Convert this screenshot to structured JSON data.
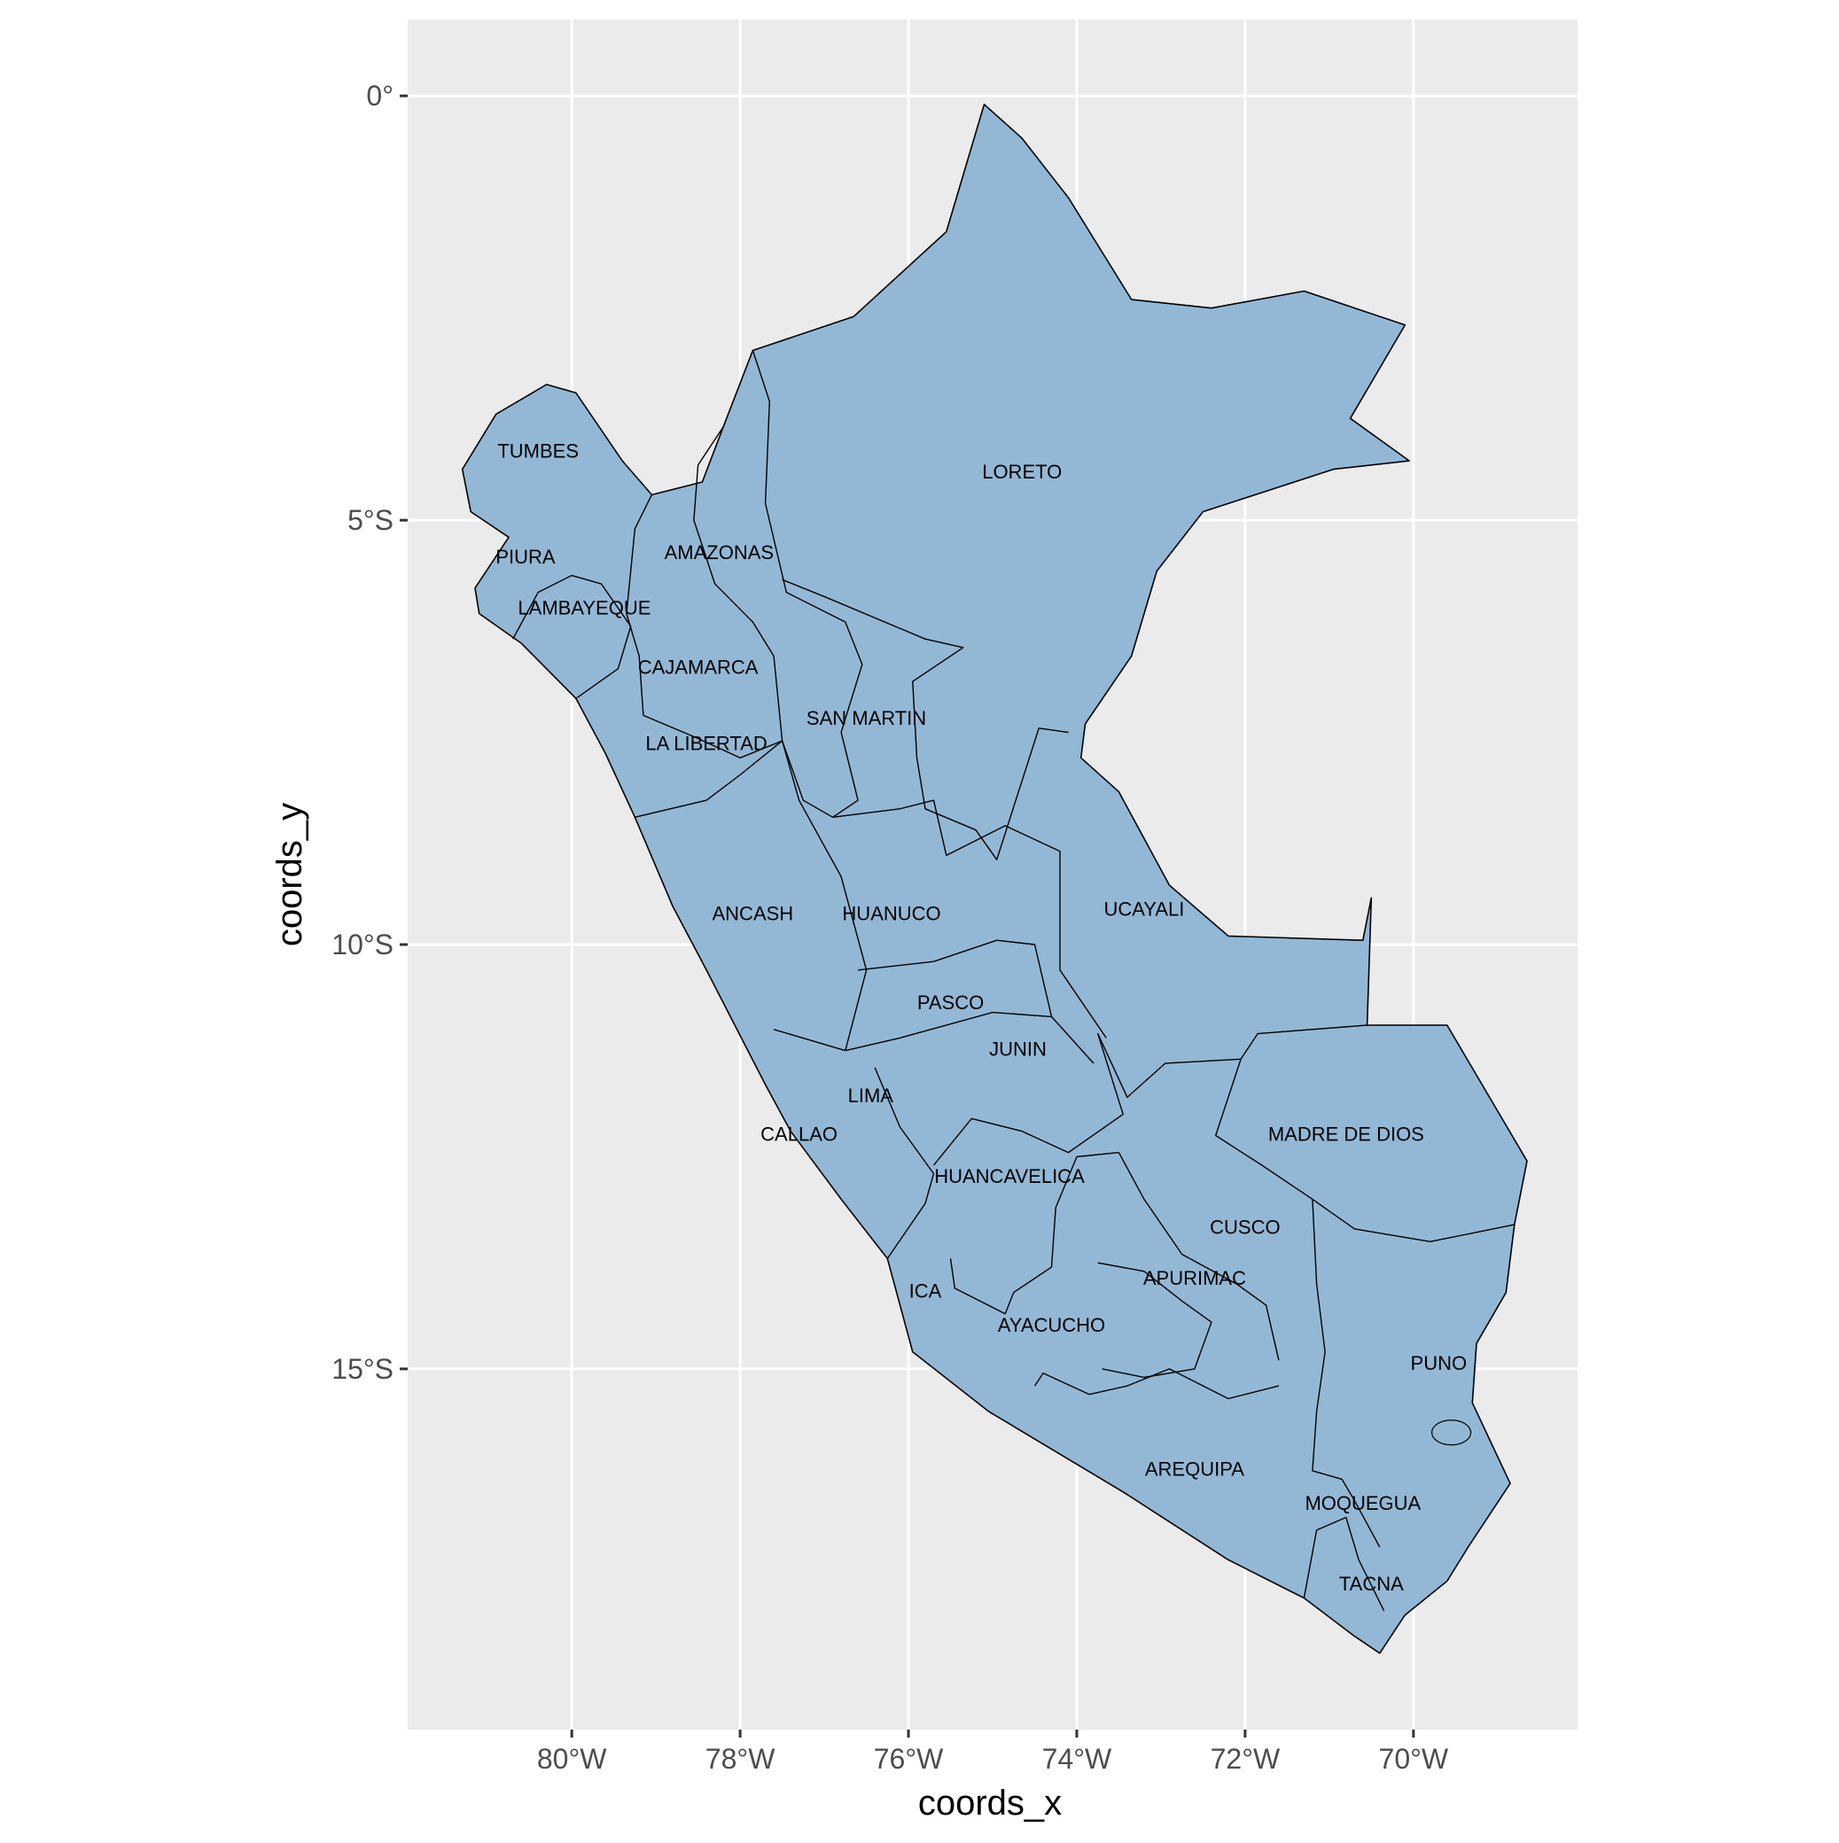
{
  "chart_data": {
    "type": "map",
    "xlabel": "coords_x",
    "ylabel": "coords_y",
    "x_ticks": [
      {
        "value": -80,
        "label": "80°W"
      },
      {
        "value": -78,
        "label": "78°W"
      },
      {
        "value": -76,
        "label": "76°W"
      },
      {
        "value": -74,
        "label": "74°W"
      },
      {
        "value": -72,
        "label": "72°W"
      },
      {
        "value": -70,
        "label": "70°W"
      }
    ],
    "y_ticks": [
      {
        "value": 0,
        "label": "0°"
      },
      {
        "value": -5,
        "label": "5°S"
      },
      {
        "value": -10,
        "label": "10°S"
      },
      {
        "value": -15,
        "label": "15°S"
      }
    ],
    "xlim": [
      -81.95,
      -68.05
    ],
    "ylim": [
      -19.25,
      0.9
    ],
    "grid": true,
    "fill_color": "#93b8d5",
    "border_color": "#000000",
    "panel_color": "#ebebeb",
    "regions": [
      {
        "name": "TUMBES",
        "lon": -80.4,
        "lat": -4.2
      },
      {
        "name": "PIURA",
        "lon": -80.55,
        "lat": -5.45
      },
      {
        "name": "LAMBAYEQUE",
        "lon": -79.85,
        "lat": -6.05
      },
      {
        "name": "AMAZONAS",
        "lon": -78.25,
        "lat": -5.4
      },
      {
        "name": "LORETO",
        "lon": -74.65,
        "lat": -4.45
      },
      {
        "name": "CAJAMARCA",
        "lon": -78.5,
        "lat": -6.75
      },
      {
        "name": "SAN MARTIN",
        "lon": -76.5,
        "lat": -7.35
      },
      {
        "name": "LA LIBERTAD",
        "lon": -78.4,
        "lat": -7.65
      },
      {
        "name": "UCAYALI",
        "lon": -73.2,
        "lat": -9.6
      },
      {
        "name": "ANCASH",
        "lon": -77.85,
        "lat": -9.65
      },
      {
        "name": "HUANUCO",
        "lon": -76.2,
        "lat": -9.65
      },
      {
        "name": "PASCO",
        "lon": -75.5,
        "lat": -10.7
      },
      {
        "name": "JUNIN",
        "lon": -74.7,
        "lat": -11.25
      },
      {
        "name": "LIMA",
        "lon": -76.45,
        "lat": -11.8
      },
      {
        "name": "CALLAO",
        "lon": -77.3,
        "lat": -12.25
      },
      {
        "name": "MADRE DE DIOS",
        "lon": -70.8,
        "lat": -12.25
      },
      {
        "name": "HUANCAVELICA",
        "lon": -74.8,
        "lat": -12.75
      },
      {
        "name": "CUSCO",
        "lon": -72.0,
        "lat": -13.35
      },
      {
        "name": "APURIMAC",
        "lon": -72.6,
        "lat": -13.95
      },
      {
        "name": "ICA",
        "lon": -75.8,
        "lat": -14.1
      },
      {
        "name": "AYACUCHO",
        "lon": -74.3,
        "lat": -14.5
      },
      {
        "name": "PUNO",
        "lon": -69.7,
        "lat": -14.95
      },
      {
        "name": "AREQUIPA",
        "lon": -72.6,
        "lat": -16.2
      },
      {
        "name": "MOQUEGUA",
        "lon": -70.6,
        "lat": -16.6
      },
      {
        "name": "TACNA",
        "lon": -70.5,
        "lat": -17.55
      }
    ],
    "outline": [
      [
        -81.3,
        -4.4
      ],
      [
        -80.9,
        -3.75
      ],
      [
        -80.3,
        -3.4
      ],
      [
        -79.95,
        -3.5
      ],
      [
        -79.4,
        -4.3
      ],
      [
        -79.05,
        -4.7
      ],
      [
        -78.45,
        -4.55
      ],
      [
        -78.2,
        -3.9
      ],
      [
        -77.85,
        -3.0
      ],
      [
        -76.65,
        -2.6
      ],
      [
        -75.55,
        -1.6
      ],
      [
        -75.1,
        -0.1
      ],
      [
        -74.65,
        -0.5
      ],
      [
        -74.1,
        -1.2
      ],
      [
        -73.35,
        -2.4
      ],
      [
        -72.4,
        -2.5
      ],
      [
        -71.3,
        -2.3
      ],
      [
        -70.1,
        -2.7
      ],
      [
        -70.75,
        -3.8
      ],
      [
        -70.05,
        -4.3
      ],
      [
        -70.95,
        -4.4
      ],
      [
        -72.5,
        -4.9
      ],
      [
        -73.05,
        -5.6
      ],
      [
        -73.35,
        -6.6
      ],
      [
        -73.9,
        -7.4
      ],
      [
        -73.95,
        -7.8
      ],
      [
        -73.5,
        -8.2
      ],
      [
        -72.9,
        -9.3
      ],
      [
        -72.2,
        -9.9
      ],
      [
        -70.6,
        -9.95
      ],
      [
        -70.5,
        -9.45
      ],
      [
        -70.55,
        -10.95
      ],
      [
        -69.6,
        -10.95
      ],
      [
        -68.65,
        -12.55
      ],
      [
        -68.8,
        -13.3
      ],
      [
        -68.9,
        -14.1
      ],
      [
        -69.25,
        -14.7
      ],
      [
        -69.3,
        -15.4
      ],
      [
        -68.85,
        -16.35
      ],
      [
        -69.35,
        -17.1
      ],
      [
        -69.6,
        -17.5
      ],
      [
        -70.1,
        -17.9
      ],
      [
        -70.4,
        -18.35
      ],
      [
        -70.7,
        -18.15
      ],
      [
        -71.3,
        -17.7
      ],
      [
        -71.5,
        -17.6
      ],
      [
        -72.2,
        -17.25
      ],
      [
        -73.45,
        -16.45
      ],
      [
        -75.05,
        -15.5
      ],
      [
        -75.95,
        -14.8
      ],
      [
        -76.25,
        -13.7
      ],
      [
        -76.8,
        -13.0
      ],
      [
        -77.4,
        -12.2
      ],
      [
        -77.7,
        -11.65
      ],
      [
        -78.4,
        -10.3
      ],
      [
        -78.8,
        -9.55
      ],
      [
        -79.25,
        -8.5
      ],
      [
        -79.6,
        -7.75
      ],
      [
        -79.95,
        -7.1
      ],
      [
        -80.6,
        -6.45
      ],
      [
        -81.1,
        -6.1
      ],
      [
        -81.15,
        -5.8
      ],
      [
        -80.75,
        -5.2
      ],
      [
        -81.2,
        -4.9
      ]
    ],
    "internal_borders": [
      [
        [
          -80.7,
          -6.4
        ],
        [
          -80.4,
          -5.85
        ],
        [
          -80.0,
          -5.65
        ],
        [
          -79.65,
          -5.75
        ],
        [
          -79.3,
          -6.25
        ],
        [
          -79.45,
          -6.75
        ],
        [
          -79.95,
          -7.1
        ]
      ],
      [
        [
          -79.05,
          -4.7
        ],
        [
          -79.25,
          -5.1
        ],
        [
          -79.35,
          -6.1
        ],
        [
          -79.2,
          -6.6
        ],
        [
          -79.15,
          -7.3
        ],
        [
          -78.55,
          -7.55
        ],
        [
          -78.0,
          -7.8
        ],
        [
          -77.5,
          -7.6
        ]
      ],
      [
        [
          -78.2,
          -3.9
        ],
        [
          -78.5,
          -4.35
        ],
        [
          -78.55,
          -5.0
        ],
        [
          -78.3,
          -5.75
        ],
        [
          -77.85,
          -6.2
        ],
        [
          -77.6,
          -6.6
        ],
        [
          -77.5,
          -7.6
        ]
      ],
      [
        [
          -77.85,
          -3.0
        ],
        [
          -77.65,
          -3.6
        ],
        [
          -77.7,
          -4.8
        ],
        [
          -77.45,
          -5.85
        ],
        [
          -76.75,
          -6.2
        ],
        [
          -76.55,
          -6.7
        ],
        [
          -76.8,
          -7.5
        ],
        [
          -76.6,
          -8.3
        ],
        [
          -76.9,
          -8.5
        ]
      ],
      [
        [
          -77.5,
          -5.7
        ],
        [
          -77.0,
          -5.9
        ],
        [
          -75.8,
          -6.4
        ],
        [
          -75.35,
          -6.5
        ],
        [
          -75.95,
          -6.9
        ],
        [
          -75.9,
          -7.8
        ],
        [
          -75.8,
          -8.4
        ],
        [
          -75.2,
          -8.65
        ],
        [
          -74.95,
          -9.0
        ],
        [
          -74.45,
          -7.45
        ],
        [
          -74.1,
          -7.5
        ]
      ],
      [
        [
          -79.25,
          -8.5
        ],
        [
          -78.4,
          -8.3
        ],
        [
          -78.0,
          -8.0
        ],
        [
          -77.5,
          -7.6
        ],
        [
          -77.25,
          -8.3
        ],
        [
          -76.9,
          -8.5
        ]
      ],
      [
        [
          -77.5,
          -7.6
        ],
        [
          -77.3,
          -8.3
        ],
        [
          -76.8,
          -9.2
        ],
        [
          -76.5,
          -10.3
        ],
        [
          -76.75,
          -11.25
        ],
        [
          -77.6,
          -11.0
        ]
      ],
      [
        [
          -76.9,
          -8.5
        ],
        [
          -76.1,
          -8.4
        ],
        [
          -75.7,
          -8.3
        ],
        [
          -75.55,
          -8.95
        ],
        [
          -74.85,
          -8.6
        ],
        [
          -74.2,
          -8.9
        ],
        [
          -74.2,
          -10.3
        ],
        [
          -73.65,
          -11.1
        ]
      ],
      [
        [
          -76.6,
          -10.3
        ],
        [
          -75.7,
          -10.2
        ],
        [
          -74.95,
          -9.95
        ],
        [
          -74.5,
          -10.0
        ],
        [
          -74.3,
          -10.85
        ],
        [
          -73.8,
          -11.4
        ]
      ],
      [
        [
          -76.75,
          -11.25
        ],
        [
          -76.1,
          -11.1
        ],
        [
          -75.0,
          -10.8
        ],
        [
          -74.3,
          -10.85
        ]
      ],
      [
        [
          -76.4,
          -11.45
        ],
        [
          -76.1,
          -12.15
        ],
        [
          -75.7,
          -12.7
        ],
        [
          -75.8,
          -13.05
        ],
        [
          -76.25,
          -13.7
        ]
      ],
      [
        [
          -75.7,
          -12.6
        ],
        [
          -75.25,
          -12.05
        ],
        [
          -74.65,
          -12.2
        ],
        [
          -74.1,
          -12.45
        ],
        [
          -73.45,
          -12.0
        ],
        [
          -73.75,
          -11.05
        ],
        [
          -73.4,
          -11.8
        ],
        [
          -72.95,
          -11.4
        ],
        [
          -72.05,
          -11.35
        ],
        [
          -71.85,
          -11.05
        ],
        [
          -70.55,
          -10.95
        ]
      ],
      [
        [
          -72.05,
          -11.35
        ],
        [
          -72.35,
          -12.25
        ],
        [
          -71.8,
          -12.6
        ],
        [
          -71.2,
          -13.0
        ],
        [
          -70.7,
          -13.35
        ],
        [
          -69.8,
          -13.5
        ],
        [
          -68.8,
          -13.3
        ]
      ],
      [
        [
          -75.5,
          -13.7
        ],
        [
          -75.45,
          -14.05
        ],
        [
          -74.85,
          -14.35
        ],
        [
          -74.75,
          -14.1
        ],
        [
          -74.3,
          -13.8
        ],
        [
          -74.25,
          -13.1
        ],
        [
          -74.0,
          -12.5
        ],
        [
          -73.5,
          -12.45
        ]
      ],
      [
        [
          -73.5,
          -12.45
        ],
        [
          -73.2,
          -13.0
        ],
        [
          -72.75,
          -13.65
        ],
        [
          -72.1,
          -14.0
        ],
        [
          -71.75,
          -14.25
        ],
        [
          -71.6,
          -14.9
        ]
      ],
      [
        [
          -73.75,
          -13.75
        ],
        [
          -73.2,
          -13.85
        ],
        [
          -72.75,
          -14.2
        ],
        [
          -72.4,
          -14.45
        ],
        [
          -72.6,
          -15.0
        ],
        [
          -73.2,
          -15.1
        ],
        [
          -73.7,
          -15.0
        ]
      ],
      [
        [
          -74.5,
          -15.2
        ],
        [
          -74.4,
          -15.05
        ],
        [
          -73.85,
          -15.3
        ],
        [
          -73.4,
          -15.2
        ],
        [
          -72.9,
          -15.0
        ],
        [
          -72.2,
          -15.35
        ],
        [
          -71.6,
          -15.2
        ]
      ],
      [
        [
          -71.2,
          -13.0
        ],
        [
          -71.15,
          -14.0
        ],
        [
          -71.05,
          -14.8
        ],
        [
          -71.15,
          -15.5
        ],
        [
          -71.2,
          -16.2
        ],
        [
          -70.85,
          -16.3
        ],
        [
          -70.7,
          -16.55
        ],
        [
          -70.4,
          -17.1
        ]
      ],
      [
        [
          -71.3,
          -17.7
        ],
        [
          -71.15,
          -16.9
        ],
        [
          -70.8,
          -16.75
        ],
        [
          -70.65,
          -17.25
        ],
        [
          -70.35,
          -17.85
        ]
      ]
    ]
  }
}
